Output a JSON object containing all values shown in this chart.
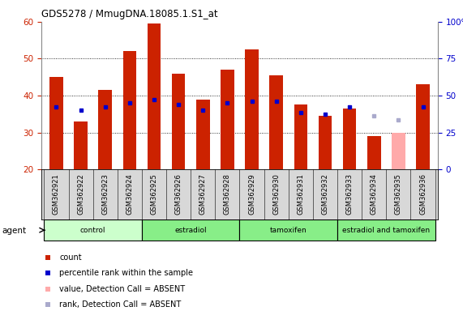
{
  "title": "GDS5278 / MmugDNA.18085.1.S1_at",
  "samples": [
    "GSM362921",
    "GSM362922",
    "GSM362923",
    "GSM362924",
    "GSM362925",
    "GSM362926",
    "GSM362927",
    "GSM362928",
    "GSM362929",
    "GSM362930",
    "GSM362931",
    "GSM362932",
    "GSM362933",
    "GSM362934",
    "GSM362935",
    "GSM362936"
  ],
  "count_values": [
    45,
    33,
    41.5,
    52,
    59.5,
    46,
    39,
    47,
    52.5,
    45.5,
    37.5,
    34.5,
    36.5,
    29,
    null,
    43
  ],
  "count_absent": [
    false,
    false,
    false,
    false,
    false,
    false,
    false,
    false,
    false,
    false,
    false,
    false,
    false,
    false,
    true,
    false
  ],
  "count_absent_values": [
    null,
    null,
    null,
    null,
    null,
    null,
    null,
    null,
    null,
    null,
    null,
    null,
    null,
    null,
    30,
    null
  ],
  "rank_values": [
    37,
    36,
    37,
    38,
    39,
    37.5,
    36,
    38,
    38.5,
    38.5,
    35.5,
    35,
    37,
    null,
    null,
    37
  ],
  "rank_absent": [
    false,
    false,
    false,
    false,
    false,
    false,
    false,
    false,
    false,
    false,
    false,
    false,
    false,
    true,
    true,
    false
  ],
  "rank_absent_values": [
    null,
    null,
    null,
    null,
    null,
    null,
    null,
    null,
    null,
    null,
    null,
    null,
    null,
    34.5,
    33.5,
    null
  ],
  "group_defs": [
    {
      "label": "control",
      "start": 0,
      "end": 3,
      "color": "#ccffcc"
    },
    {
      "label": "estradiol",
      "start": 4,
      "end": 7,
      "color": "#88ee88"
    },
    {
      "label": "tamoxifen",
      "start": 8,
      "end": 11,
      "color": "#88ee88"
    },
    {
      "label": "estradiol and tamoxifen",
      "start": 12,
      "end": 15,
      "color": "#88ee88"
    }
  ],
  "ylim_left": [
    20,
    60
  ],
  "ylim_right": [
    0,
    100
  ],
  "yticks_left": [
    20,
    30,
    40,
    50,
    60
  ],
  "yticks_right": [
    0,
    25,
    50,
    75,
    100
  ],
  "yticklabels_right": [
    "0",
    "25",
    "50",
    "75",
    "100%"
  ],
  "bar_color_present": "#cc2200",
  "bar_color_absent": "#ffaaaa",
  "rank_color_present": "#0000cc",
  "rank_color_absent": "#aaaacc",
  "bar_width": 0.55,
  "ylabel_left_color": "#cc2200",
  "ylabel_right_color": "#0000cc",
  "legend_items": [
    {
      "label": "count",
      "color": "#cc2200"
    },
    {
      "label": "percentile rank within the sample",
      "color": "#0000cc"
    },
    {
      "label": "value, Detection Call = ABSENT",
      "color": "#ffaaaa"
    },
    {
      "label": "rank, Detection Call = ABSENT",
      "color": "#aaaacc"
    }
  ],
  "agent_label": "agent"
}
